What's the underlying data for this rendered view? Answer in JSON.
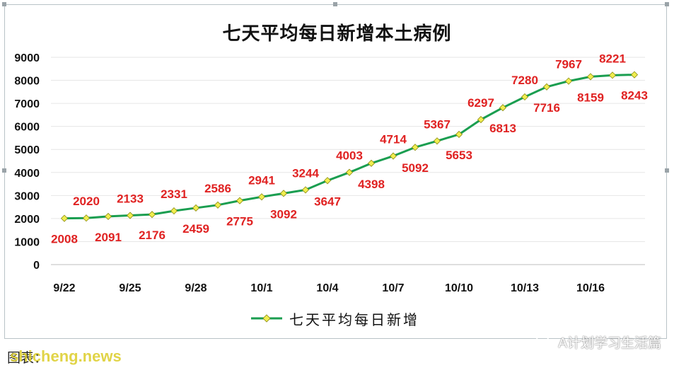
{
  "title": "七天平均每日新增本土病例",
  "legend": {
    "label": "七天平均每日新增",
    "marker_icon": "diamond-icon"
  },
  "footer": {
    "credit": "图表：",
    "watermark": "shicheng.news"
  },
  "brand": {
    "label": "A计划学习生活篇",
    "icon": "wechat-icon"
  },
  "colors": {
    "line": "#1a9e50",
    "marker": "#f0ee50",
    "marker_edge": "#8a8a10",
    "label": "#e02222",
    "grid": "#e6e6e6",
    "axis_text": "#111111"
  },
  "chart_data": {
    "type": "line",
    "title": "七天平均每日新增本土病例",
    "xlabel": "",
    "ylabel": "",
    "ylim": [
      0,
      9000
    ],
    "yticks": [
      0,
      1000,
      2000,
      3000,
      4000,
      5000,
      6000,
      7000,
      8000,
      9000
    ],
    "x": [
      "9/22",
      "9/23",
      "9/24",
      "9/25",
      "9/26",
      "9/27",
      "9/28",
      "9/29",
      "9/30",
      "10/1",
      "10/2",
      "10/3",
      "10/4",
      "10/5",
      "10/6",
      "10/7",
      "10/8",
      "10/9",
      "10/10",
      "10/11",
      "10/12",
      "10/13",
      "10/14",
      "10/15",
      "10/16",
      "10/17",
      "10/18"
    ],
    "xtick_labels": [
      "9/22",
      "9/25",
      "9/28",
      "10/1",
      "10/4",
      "10/7",
      "10/10",
      "10/13",
      "10/16"
    ],
    "grid": true,
    "legend_position": "bottom",
    "series": [
      {
        "name": "七天平均每日新增",
        "values": [
          2008,
          2020,
          2091,
          2133,
          2176,
          2331,
          2459,
          2586,
          2775,
          2941,
          3092,
          3244,
          3647,
          4003,
          4398,
          4714,
          5092,
          5367,
          5653,
          6297,
          6813,
          7280,
          7716,
          7967,
          8159,
          8221,
          8243
        ],
        "label_positions": [
          "below",
          "above",
          "below",
          "above",
          "below",
          "above",
          "below",
          "above",
          "below",
          "above",
          "below",
          "above",
          "below",
          "above",
          "below",
          "above",
          "below",
          "above",
          "below",
          "above",
          "below",
          "above",
          "below",
          "above",
          "below",
          "above",
          "below"
        ]
      }
    ]
  }
}
